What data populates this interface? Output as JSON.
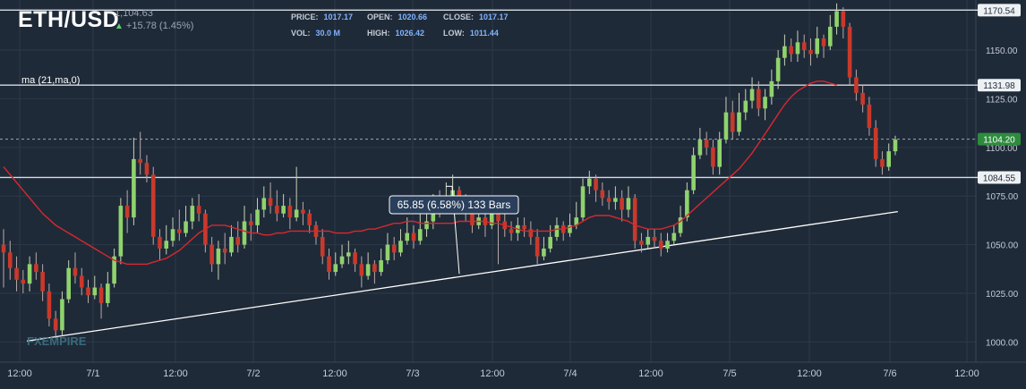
{
  "header": {
    "symbol": "ETH/USD",
    "last_price": "1,104.63",
    "change": "+15.78 (1.45%)",
    "up_arrow_icon": "up-arrow-icon",
    "stats": [
      {
        "label": "PRICE:",
        "value": "1017.17"
      },
      {
        "label": "OPEN:",
        "value": "1020.66"
      },
      {
        "label": "CLOSE:",
        "value": "1017.17"
      },
      {
        "label": "VOL:",
        "value": "30.0 M"
      },
      {
        "label": "HIGH:",
        "value": "1026.42"
      },
      {
        "label": "LOW:",
        "value": "1011.44"
      }
    ]
  },
  "indicator_label": "ma (21,ma,0)",
  "measure_label": "65.85 (6.58%) 133 Bars",
  "watermark": "FXEMPIRE",
  "colors": {
    "background": "#1f2a38",
    "up": "#8fd36d",
    "down": "#c9392b",
    "ma": "#d8282e",
    "grid": "#2c3949",
    "text": "#c3cbd6"
  },
  "chart_data": {
    "type": "candlestick",
    "ylim": [
      995,
      1175
    ],
    "y_ticks": [
      1000,
      1025,
      1050,
      1075,
      1100,
      1125,
      1150
    ],
    "y_tick_labels": [
      "1000.00",
      "1025.00",
      "1050.00",
      "1075.00",
      "1100.00",
      "1125.00",
      "1150.00"
    ],
    "x_tick_labels": [
      "12:00",
      "7/1",
      "12:00",
      "7/2",
      "12:00",
      "7/3",
      "12:00",
      "7/4",
      "12:00",
      "7/5",
      "12:00",
      "7/6",
      "12:00"
    ],
    "horizontal_levels": [
      {
        "value": 1170.54,
        "label": "1170.54",
        "style": "solid"
      },
      {
        "value": 1131.98,
        "label": "1131.98",
        "style": "solid"
      },
      {
        "value": 1104.2,
        "label": "1104.20",
        "style": "dashed",
        "current": true
      },
      {
        "value": 1084.55,
        "label": "1084.55",
        "style": "solid"
      }
    ],
    "trendline": {
      "from": [
        0,
        1000.5
      ],
      "to": [
        112.5,
        1067
      ]
    },
    "measure_line": {
      "from": [
        57.3,
        1080
      ],
      "to": [
        58.2,
        1035
      ],
      "value": 65.85,
      "percent": 6.58,
      "bars": 133
    },
    "candles": [
      [
        1050,
        1046,
        1058,
        1028
      ],
      [
        1046,
        1038,
        1052,
        1032
      ],
      [
        1038,
        1032,
        1044,
        1026
      ],
      [
        1032,
        1030,
        1037,
        1025
      ],
      [
        1030,
        1040,
        1044,
        1026
      ],
      [
        1040,
        1036,
        1046,
        1032
      ],
      [
        1036,
        1026,
        1040,
        1021
      ],
      [
        1026,
        1012,
        1030,
        1008
      ],
      [
        1012,
        1006,
        1016,
        1002
      ],
      [
        1006,
        1022,
        1026,
        1003
      ],
      [
        1022,
        1038,
        1042,
        1020
      ],
      [
        1038,
        1034,
        1046,
        1030
      ],
      [
        1034,
        1028,
        1038,
        1024
      ],
      [
        1028,
        1024,
        1032,
        1020
      ],
      [
        1024,
        1028,
        1034,
        1022
      ],
      [
        1028,
        1020,
        1030,
        1012
      ],
      [
        1020,
        1030,
        1036,
        1018
      ],
      [
        1030,
        1044,
        1048,
        1028
      ],
      [
        1044,
        1070,
        1074,
        1040
      ],
      [
        1070,
        1064,
        1078,
        1056
      ],
      [
        1064,
        1094,
        1105,
        1060
      ],
      [
        1094,
        1092,
        1108,
        1086
      ],
      [
        1092,
        1086,
        1096,
        1082
      ],
      [
        1086,
        1054,
        1090,
        1050
      ],
      [
        1054,
        1048,
        1058,
        1042
      ],
      [
        1048,
        1052,
        1060,
        1045
      ],
      [
        1052,
        1058,
        1064,
        1049
      ],
      [
        1058,
        1056,
        1068,
        1052
      ],
      [
        1056,
        1062,
        1070,
        1054
      ],
      [
        1062,
        1070,
        1074,
        1058
      ],
      [
        1070,
        1066,
        1076,
        1062
      ],
      [
        1066,
        1050,
        1068,
        1046
      ],
      [
        1050,
        1040,
        1054,
        1036
      ],
      [
        1040,
        1048,
        1052,
        1032
      ],
      [
        1048,
        1046,
        1056,
        1040
      ],
      [
        1046,
        1054,
        1060,
        1044
      ],
      [
        1054,
        1050,
        1062,
        1046
      ],
      [
        1050,
        1062,
        1070,
        1048
      ],
      [
        1062,
        1060,
        1066,
        1052
      ],
      [
        1060,
        1068,
        1074,
        1056
      ],
      [
        1068,
        1074,
        1080,
        1064
      ],
      [
        1074,
        1070,
        1082,
        1066
      ],
      [
        1070,
        1066,
        1078,
        1062
      ],
      [
        1066,
        1070,
        1076,
        1064
      ],
      [
        1070,
        1064,
        1074,
        1058
      ],
      [
        1064,
        1068,
        1090,
        1062
      ],
      [
        1068,
        1066,
        1072,
        1060
      ],
      [
        1066,
        1060,
        1068,
        1056
      ],
      [
        1060,
        1054,
        1062,
        1050
      ],
      [
        1054,
        1044,
        1058,
        1040
      ],
      [
        1044,
        1036,
        1048,
        1032
      ],
      [
        1036,
        1040,
        1046,
        1034
      ],
      [
        1040,
        1044,
        1050,
        1038
      ],
      [
        1044,
        1046,
        1052,
        1040
      ],
      [
        1046,
        1040,
        1048,
        1036
      ],
      [
        1040,
        1034,
        1044,
        1028
      ],
      [
        1034,
        1040,
        1046,
        1032
      ],
      [
        1040,
        1036,
        1042,
        1030
      ],
      [
        1036,
        1042,
        1048,
        1034
      ],
      [
        1042,
        1050,
        1056,
        1040
      ],
      [
        1050,
        1046,
        1054,
        1042
      ],
      [
        1046,
        1052,
        1058,
        1044
      ],
      [
        1052,
        1056,
        1064,
        1050
      ],
      [
        1056,
        1052,
        1060,
        1048
      ],
      [
        1052,
        1058,
        1066,
        1050
      ],
      [
        1058,
        1062,
        1070,
        1054
      ],
      [
        1062,
        1070,
        1076,
        1058
      ],
      [
        1070,
        1068,
        1078,
        1064
      ],
      [
        1068,
        1074,
        1082,
        1066
      ],
      [
        1074,
        1078,
        1086,
        1070
      ],
      [
        1078,
        1072,
        1080,
        1066
      ],
      [
        1072,
        1068,
        1076,
        1062
      ],
      [
        1068,
        1060,
        1072,
        1056
      ],
      [
        1060,
        1064,
        1070,
        1058
      ],
      [
        1064,
        1060,
        1068,
        1054
      ],
      [
        1060,
        1066,
        1072,
        1058
      ],
      [
        1066,
        1062,
        1070,
        1040
      ],
      [
        1062,
        1058,
        1066,
        1054
      ],
      [
        1058,
        1056,
        1062,
        1052
      ],
      [
        1056,
        1060,
        1064,
        1052
      ],
      [
        1060,
        1058,
        1064,
        1054
      ],
      [
        1058,
        1054,
        1062,
        1050
      ],
      [
        1054,
        1044,
        1058,
        1040
      ],
      [
        1044,
        1048,
        1054,
        1042
      ],
      [
        1048,
        1054,
        1060,
        1046
      ],
      [
        1054,
        1060,
        1064,
        1052
      ],
      [
        1060,
        1056,
        1062,
        1052
      ],
      [
        1056,
        1060,
        1066,
        1054
      ],
      [
        1060,
        1064,
        1072,
        1058
      ],
      [
        1064,
        1080,
        1084,
        1062
      ],
      [
        1080,
        1084,
        1088,
        1076
      ],
      [
        1084,
        1078,
        1086,
        1072
      ],
      [
        1078,
        1074,
        1082,
        1070
      ],
      [
        1074,
        1072,
        1078,
        1068
      ],
      [
        1072,
        1074,
        1080,
        1068
      ],
      [
        1074,
        1068,
        1078,
        1062
      ],
      [
        1068,
        1074,
        1080,
        1064
      ],
      [
        1074,
        1052,
        1076,
        1048
      ],
      [
        1052,
        1050,
        1056,
        1046
      ],
      [
        1050,
        1054,
        1058,
        1048
      ],
      [
        1054,
        1052,
        1058,
        1048
      ],
      [
        1052,
        1048,
        1056,
        1044
      ],
      [
        1048,
        1052,
        1056,
        1046
      ],
      [
        1052,
        1056,
        1060,
        1050
      ],
      [
        1056,
        1064,
        1070,
        1054
      ],
      [
        1064,
        1078,
        1082,
        1062
      ],
      [
        1078,
        1096,
        1100,
        1076
      ],
      [
        1096,
        1104,
        1110,
        1094
      ],
      [
        1104,
        1100,
        1108,
        1096
      ],
      [
        1100,
        1090,
        1104,
        1086
      ],
      [
        1090,
        1104,
        1108,
        1086
      ],
      [
        1104,
        1118,
        1126,
        1102
      ],
      [
        1118,
        1108,
        1124,
        1104
      ],
      [
        1108,
        1118,
        1128,
        1106
      ],
      [
        1118,
        1124,
        1130,
        1114
      ],
      [
        1124,
        1130,
        1136,
        1120
      ],
      [
        1130,
        1120,
        1134,
        1116
      ],
      [
        1120,
        1126,
        1130,
        1114
      ],
      [
        1126,
        1134,
        1140,
        1122
      ],
      [
        1134,
        1146,
        1150,
        1130
      ],
      [
        1146,
        1152,
        1158,
        1142
      ],
      [
        1152,
        1148,
        1156,
        1144
      ],
      [
        1148,
        1154,
        1160,
        1144
      ],
      [
        1154,
        1150,
        1158,
        1146
      ],
      [
        1150,
        1148,
        1156,
        1142
      ],
      [
        1148,
        1156,
        1162,
        1146
      ],
      [
        1156,
        1152,
        1158,
        1146
      ],
      [
        1152,
        1162,
        1168,
        1150
      ],
      [
        1162,
        1170,
        1174,
        1158
      ],
      [
        1170,
        1162,
        1172,
        1156
      ],
      [
        1162,
        1136,
        1164,
        1132
      ],
      [
        1136,
        1128,
        1140,
        1124
      ],
      [
        1128,
        1122,
        1132,
        1118
      ],
      [
        1122,
        1110,
        1126,
        1106
      ],
      [
        1110,
        1094,
        1114,
        1090
      ],
      [
        1094,
        1090,
        1098,
        1086
      ],
      [
        1090,
        1098,
        1102,
        1088
      ],
      [
        1098,
        1104,
        1106,
        1096
      ]
    ],
    "ma_values": [
      1090,
      1086,
      1082,
      1078,
      1074,
      1070,
      1066,
      1063,
      1060,
      1058,
      1056,
      1054,
      1052,
      1050,
      1048,
      1046,
      1044,
      1042,
      1041,
      1040,
      1040,
      1040,
      1040,
      1041,
      1042,
      1043,
      1045,
      1047,
      1050,
      1053,
      1056,
      1058,
      1060,
      1060,
      1060,
      1059,
      1058,
      1057,
      1056,
      1056,
      1055,
      1055,
      1056,
      1056,
      1057,
      1057,
      1057,
      1057,
      1057,
      1057,
      1057,
      1056,
      1056,
      1056,
      1057,
      1057,
      1058,
      1058,
      1059,
      1060,
      1061,
      1061,
      1062,
      1062,
      1061,
      1061,
      1061,
      1061,
      1061,
      1061,
      1062,
      1062,
      1062,
      1062,
      1062,
      1061,
      1061,
      1060,
      1059,
      1058,
      1057,
      1057,
      1057,
      1057,
      1057,
      1058,
      1058,
      1059,
      1060,
      1062,
      1064,
      1065,
      1065,
      1065,
      1064,
      1063,
      1062,
      1060,
      1059,
      1058,
      1058,
      1058,
      1059,
      1060,
      1062,
      1065,
      1068,
      1071,
      1074,
      1077,
      1080,
      1083,
      1086,
      1089,
      1093,
      1097,
      1102,
      1107,
      1112,
      1117,
      1122,
      1126,
      1129,
      1131,
      1133,
      1134,
      1134,
      1133,
      1132
    ]
  }
}
